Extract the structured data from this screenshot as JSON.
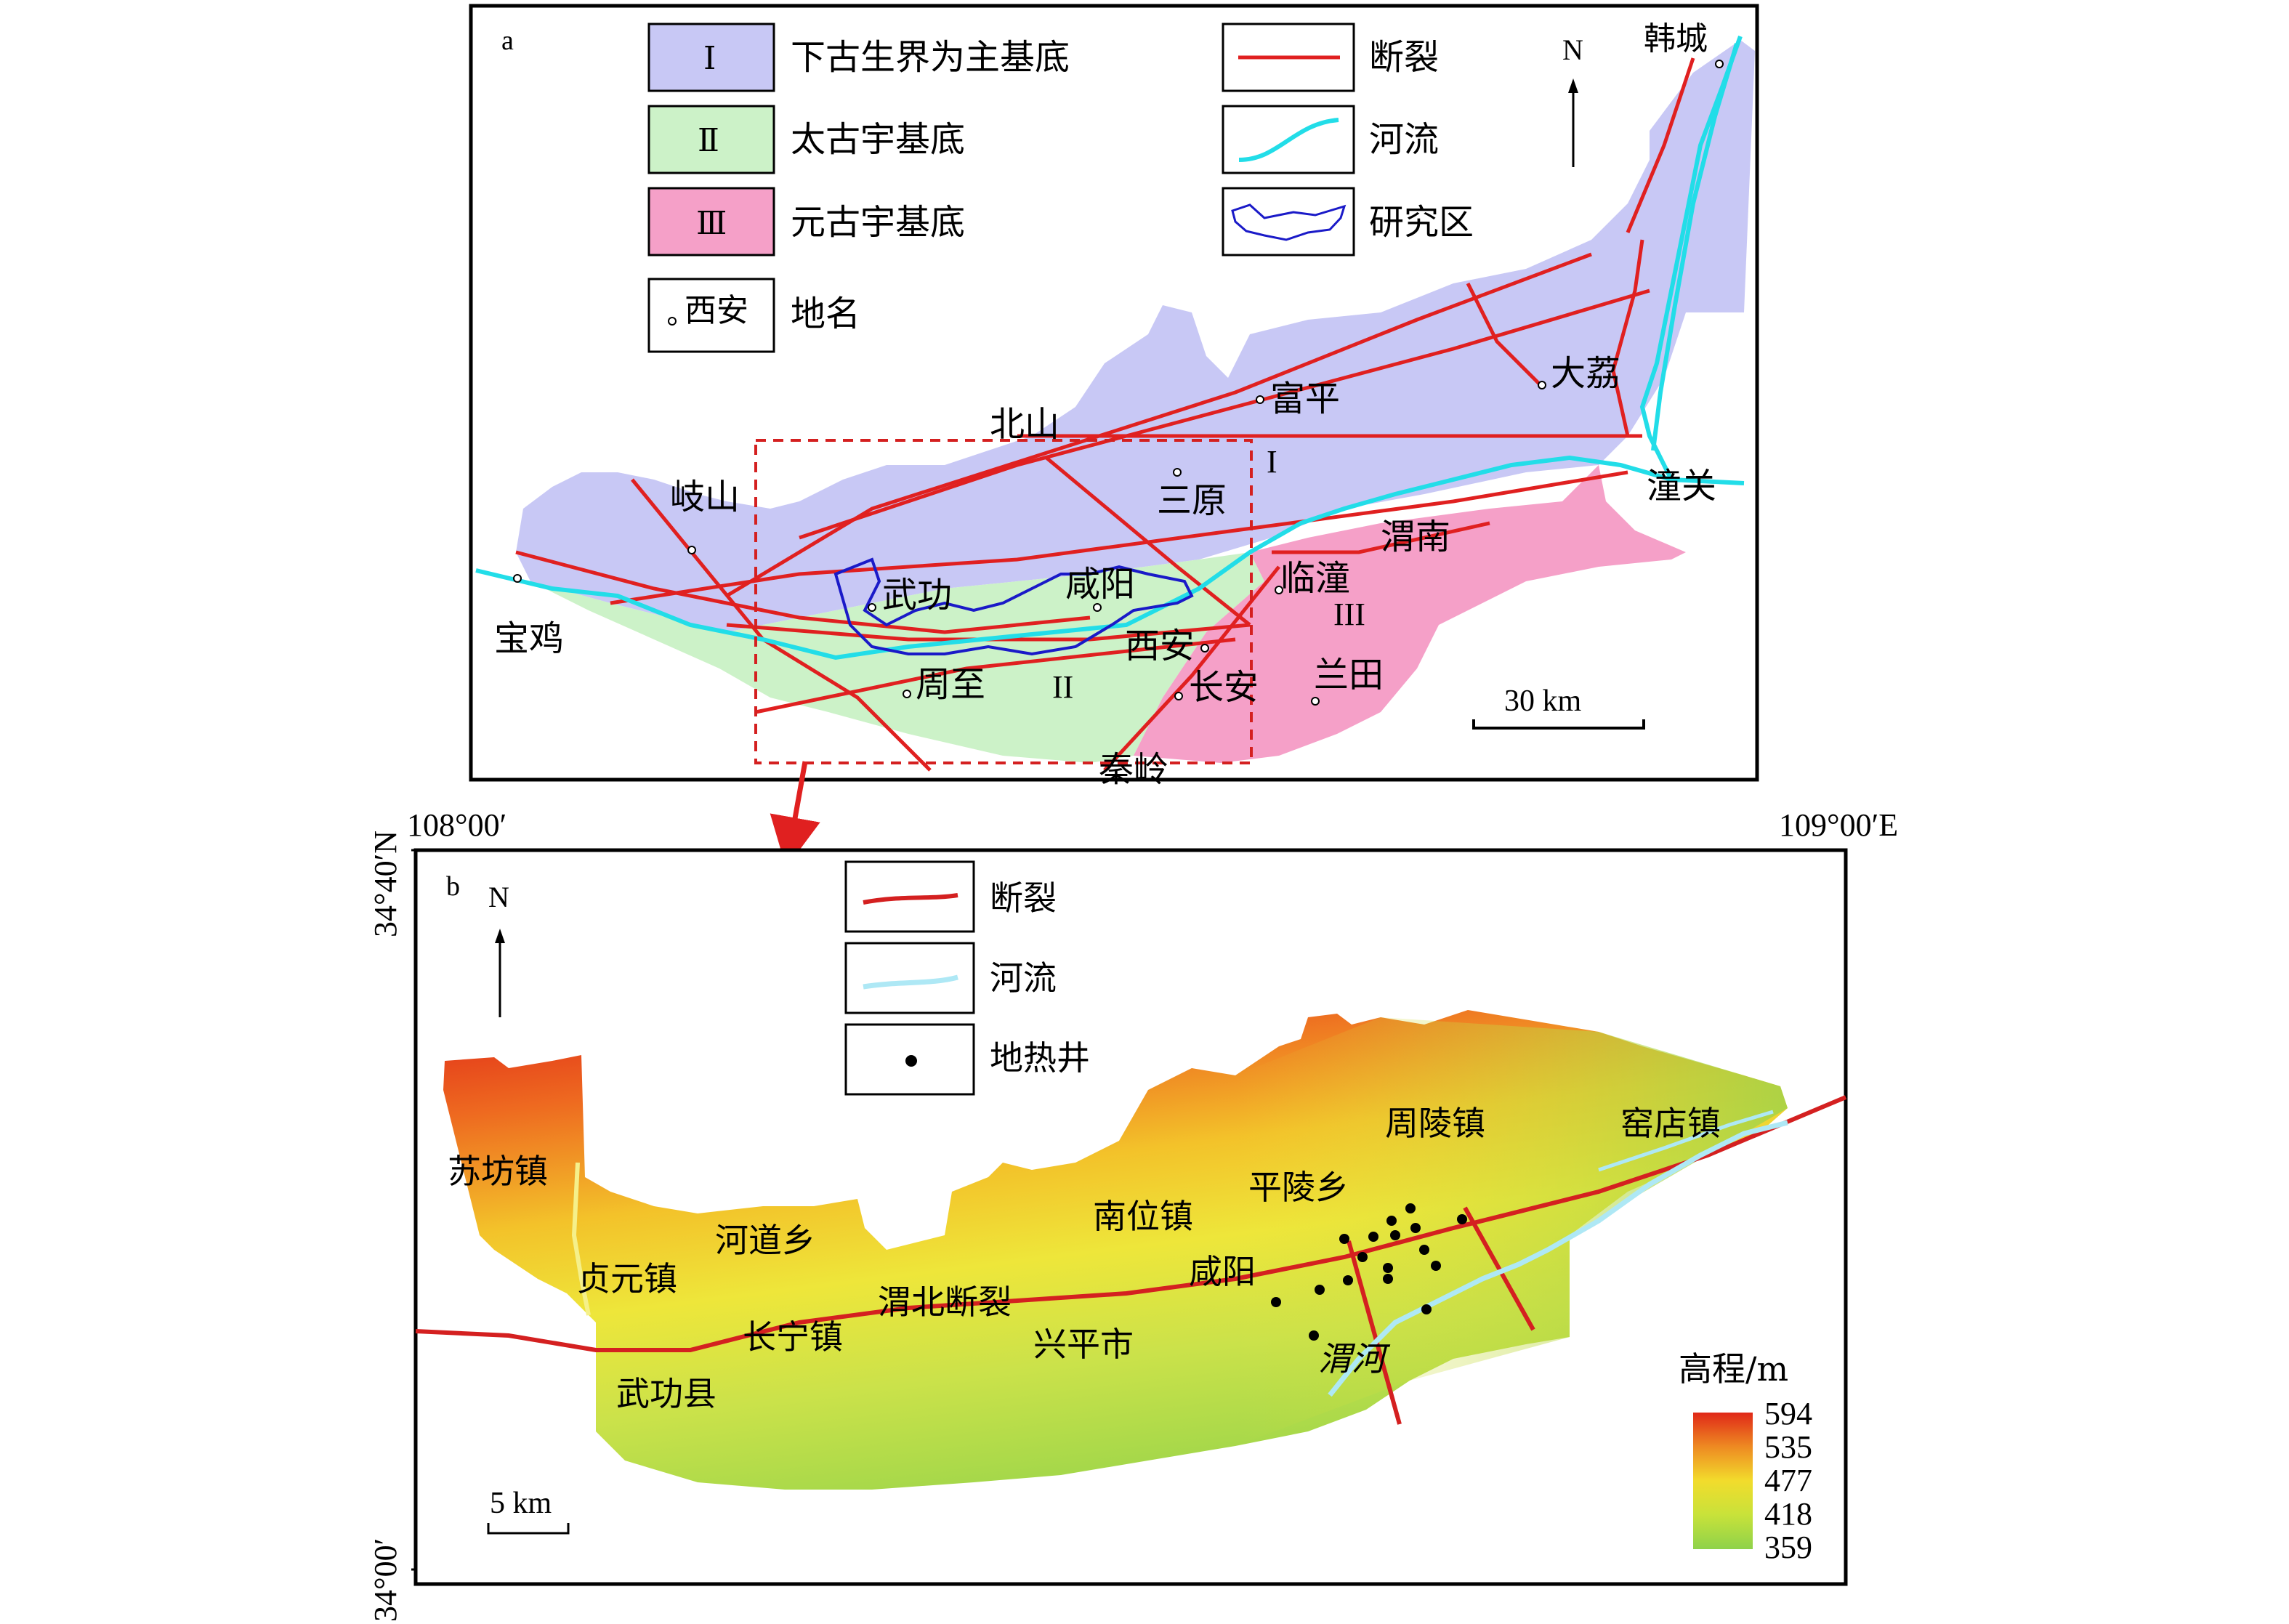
{
  "panel_a": {
    "label": "a",
    "legend": [
      {
        "symbol": "Ⅰ",
        "text": "下古生界为主基底",
        "color": "#c8c8f5"
      },
      {
        "symbol": "Ⅱ",
        "text": "太古宇基底",
        "color": "#ccf2c8"
      },
      {
        "symbol": "Ⅲ",
        "text": "元古宇基底",
        "color": "#f5a0c8"
      },
      {
        "symbol": "西安",
        "text": "地名"
      },
      {
        "text": "断裂",
        "color": "#e02020"
      },
      {
        "text": "河流",
        "color": "#22dde8"
      },
      {
        "text": "研究区",
        "color": "#1a1ac8"
      }
    ],
    "north": "N",
    "scale_bar": "30 km",
    "zone_labels": [
      "I",
      "II",
      "III"
    ],
    "places": [
      "韩城",
      "大荔",
      "富平",
      "北山",
      "三原",
      "岐山",
      "潼关",
      "渭南",
      "临潼",
      "武功",
      "咸阳",
      "宝鸡",
      "西安",
      "长安",
      "周至",
      "兰田",
      "秦岭"
    ]
  },
  "coords": {
    "lon_left": "108°00′",
    "lon_right": "109°00′E",
    "lat_top": "34°40′N",
    "lat_bottom": "34°00′"
  },
  "panel_b": {
    "label": "b",
    "legend": [
      {
        "text": "断裂",
        "color": "#d42020"
      },
      {
        "text": "河流",
        "color": "#aee8f5"
      },
      {
        "text": "地热井",
        "color": "#000000"
      }
    ],
    "north": "N",
    "scale_bar": "5 km",
    "places": [
      "苏坊镇",
      "贞元镇",
      "河道乡",
      "武功县",
      "长宁镇",
      "渭北断裂",
      "兴平市",
      "南位镇",
      "咸阳",
      "平陵乡",
      "周陵镇",
      "窑店镇",
      "渭河"
    ],
    "elevation": {
      "title": "高程/m",
      "ticks": [
        "594",
        "535",
        "477",
        "418",
        "359"
      ],
      "colors": [
        "#e02818",
        "#ee8a22",
        "#f2dc2c",
        "#c8e23a",
        "#8ed24a"
      ]
    }
  }
}
